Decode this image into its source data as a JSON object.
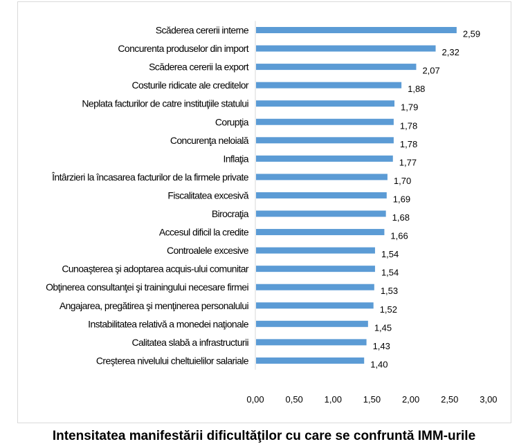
{
  "chart_data": {
    "type": "bar",
    "orientation": "horizontal",
    "categories": [
      "Scăderea cererii interne",
      "Concurenta produselor din import",
      "Scăderea cererii la export",
      "Costurile ridicate ale creditelor",
      "Neplata facturilor de catre instituţiile statului",
      "Corupţia",
      "Concurenţa neloială",
      "Inflaţia",
      "Întârzieri la încasarea facturilor de la firmele private",
      "Fiscalitatea excesivă",
      "Birocraţia",
      "Accesul dificil la credite",
      "Controalele excesive",
      "Cunoaşterea şi adoptarea acquis-ului comunitar",
      "Obţinerea consultanţei şi trainingului necesare firmei",
      "Angajarea, pregătirea şi menţinerea personalului",
      "Instabilitatea relativă a monedei naţionale",
      "Calitatea slabă a infrastructurii",
      "Creşterea nivelului cheltuielilor salariale"
    ],
    "values": [
      2.59,
      2.32,
      2.07,
      1.88,
      1.79,
      1.78,
      1.78,
      1.77,
      1.7,
      1.69,
      1.68,
      1.66,
      1.54,
      1.54,
      1.53,
      1.52,
      1.45,
      1.43,
      1.4
    ],
    "value_labels": [
      "2,59",
      "2,32",
      "2,07",
      "1,88",
      "1,79",
      "1,78",
      "1,78",
      "1,77",
      "1,70",
      "1,69",
      "1,68",
      "1,66",
      "1,54",
      "1,54",
      "1,53",
      "1,52",
      "1,45",
      "1,43",
      "1,40"
    ],
    "xlim": [
      0,
      3
    ],
    "xticks": [
      0,
      0.5,
      1,
      1.5,
      2,
      2.5,
      3
    ],
    "xtick_labels": [
      "0,00",
      "0,50",
      "1,00",
      "1,50",
      "2,00",
      "2,50",
      "3,00"
    ],
    "grid": false,
    "legend": "none",
    "bar_color": "#5b9bd5",
    "title": "",
    "xlabel": "",
    "ylabel": ""
  },
  "caption": "Intensitatea manifestării dificultăţilor cu care se confruntă IMM-urile"
}
